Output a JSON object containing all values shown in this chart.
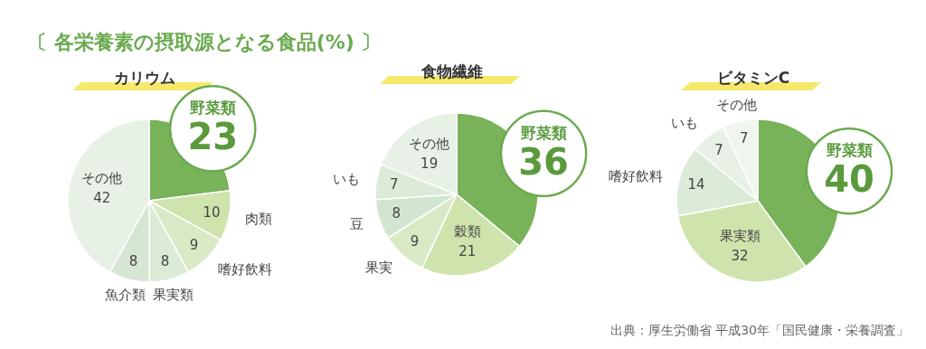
{
  "chart_data": [
    {
      "type": "other",
      "title": "〔 各栄養素の摂取源となる食品(%) 〕",
      "annotations": [
        "出典：厚生労働省 平成30年「国民健康・栄養調査」"
      ]
    },
    {
      "type": "pie",
      "title": "カリウム",
      "categories": [
        "野菜類",
        "肉類",
        "嗜好飲料",
        "果実類",
        "魚介類",
        "その他"
      ],
      "values": [
        23,
        10,
        9,
        8,
        8,
        42
      ],
      "colors": [
        "#78b259",
        "#cfe3ad",
        "#d9e9c6",
        "#dcebd5",
        "#d5e6d3",
        "#e7f1e5"
      ],
      "data_labels": true
    },
    {
      "type": "pie",
      "title": "食物繊維",
      "categories": [
        "野菜類",
        "穀類",
        "果実",
        "豆",
        "いも",
        "その他"
      ],
      "values": [
        36,
        21,
        9,
        8,
        7,
        19
      ],
      "colors": [
        "#78b259",
        "#cfe3ad",
        "#d9e9c6",
        "#d2e5d0",
        "#dcebd8",
        "#e7f1e5"
      ],
      "data_labels": true
    },
    {
      "type": "pie",
      "title": "ビタミンC",
      "categories": [
        "野菜類",
        "果実類",
        "嗜好飲料",
        "いも",
        "その他"
      ],
      "values": [
        40,
        32,
        14,
        7,
        7
      ],
      "colors": [
        "#78b259",
        "#cfe3ad",
        "#dcebd8",
        "#e7f1e5",
        "#f0f6ee"
      ],
      "data_labels": true
    }
  ]
}
